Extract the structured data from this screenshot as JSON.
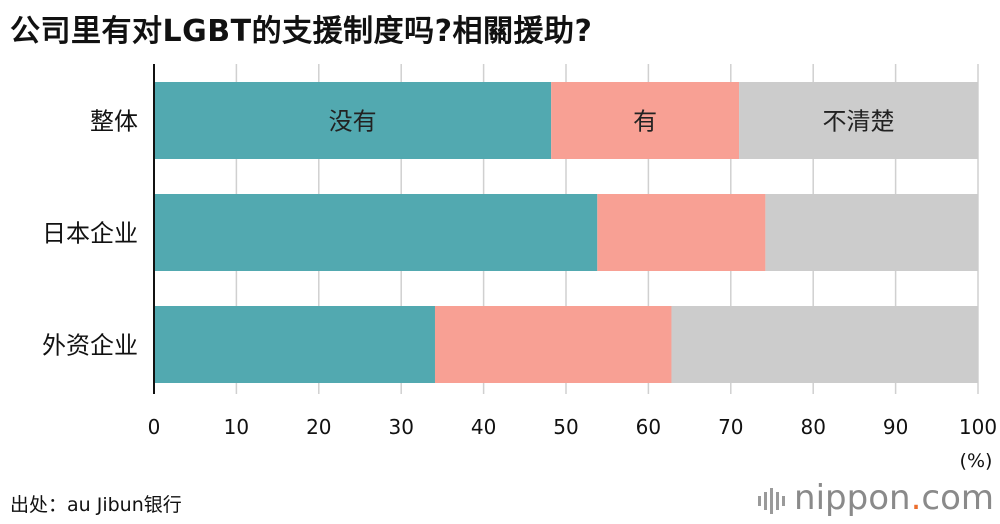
{
  "header": {
    "title": "公司里有对LGBT的支援制度吗?相關援助?"
  },
  "footer": {
    "source": "出处：au Jibun银行",
    "brand_main": "nippon",
    "brand_dot": ".",
    "brand_tail": "com"
  },
  "chart_data": {
    "type": "bar",
    "orientation": "horizontal",
    "stacked": true,
    "title": "公司里有对LGBT的支援制度吗?相關援助?",
    "categories": [
      "整体",
      "日本企业",
      "外资企业"
    ],
    "series": [
      {
        "name": "没有",
        "color": "#52a9b0",
        "values": [
          48.2,
          53.8,
          34.1
        ]
      },
      {
        "name": "有",
        "color": "#f8a094",
        "values": [
          22.8,
          20.4,
          28.7
        ]
      },
      {
        "name": "不清楚",
        "color": "#cccccc",
        "values": [
          29.0,
          25.8,
          37.2
        ]
      }
    ],
    "xlim": [
      0,
      100
    ],
    "xticks": [
      0,
      10,
      20,
      30,
      40,
      50,
      60,
      70,
      80,
      90,
      100
    ],
    "xunit": "(%)",
    "grid": true,
    "legend": "inline-first-bar"
  }
}
